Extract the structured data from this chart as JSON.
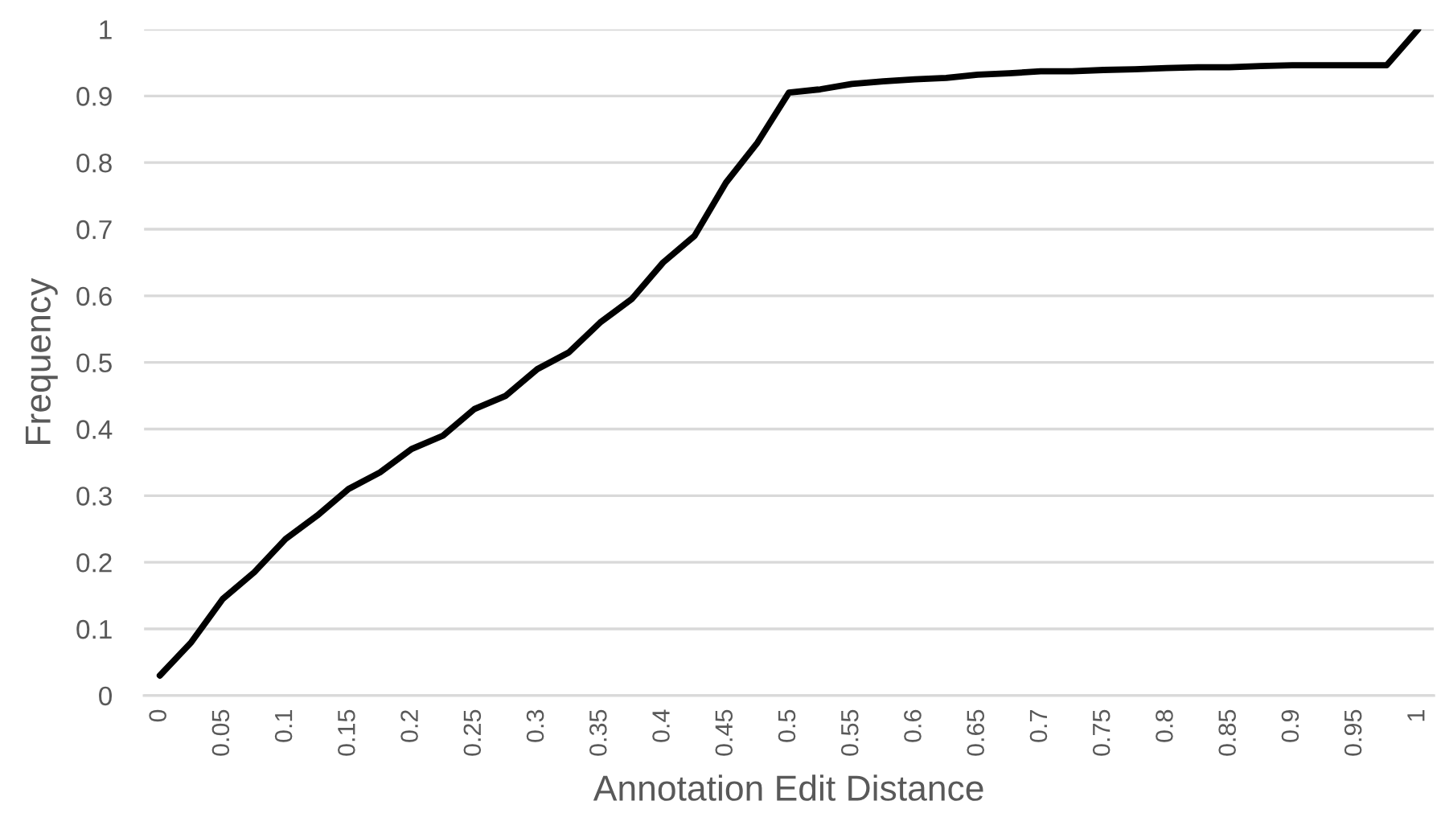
{
  "chart_data": {
    "type": "line",
    "xlabel": "Annotation Edit Distance",
    "ylabel": "Frequency",
    "categories": [
      "0",
      null,
      "0.05",
      null,
      "0.1",
      null,
      "0.15",
      null,
      "0.2",
      null,
      "0.25",
      null,
      "0.3",
      null,
      "0.35",
      null,
      "0.4",
      null,
      "0.45",
      null,
      "0.5",
      null,
      "0.55",
      null,
      "0.6",
      null,
      "0.65",
      null,
      "0.7",
      null,
      "0.75",
      null,
      "0.8",
      null,
      "0.85",
      null,
      "0.9",
      null,
      "0.95",
      null,
      "1"
    ],
    "series": [
      {
        "color": "#000000",
        "values": [
          0.03,
          0.08,
          0.145,
          0.185,
          0.235,
          0.27,
          0.31,
          0.335,
          0.37,
          0.39,
          0.43,
          0.45,
          0.49,
          0.515,
          0.56,
          0.595,
          0.65,
          0.69,
          0.77,
          0.83,
          0.905,
          0.91,
          0.918,
          0.922,
          0.925,
          0.927,
          0.932,
          0.934,
          0.937,
          0.937,
          0.939,
          0.94,
          0.942,
          0.943,
          0.943,
          0.945,
          0.946,
          0.946,
          0.946,
          0.946,
          1.0
        ]
      }
    ],
    "ylim": [
      0,
      1
    ],
    "yticks": [
      0,
      0.1,
      0.2,
      0.3,
      0.4,
      0.5,
      0.6,
      0.7,
      0.8,
      0.9,
      1
    ],
    "grid": "y",
    "legend": false,
    "marker": "none",
    "line_style": "solid"
  }
}
